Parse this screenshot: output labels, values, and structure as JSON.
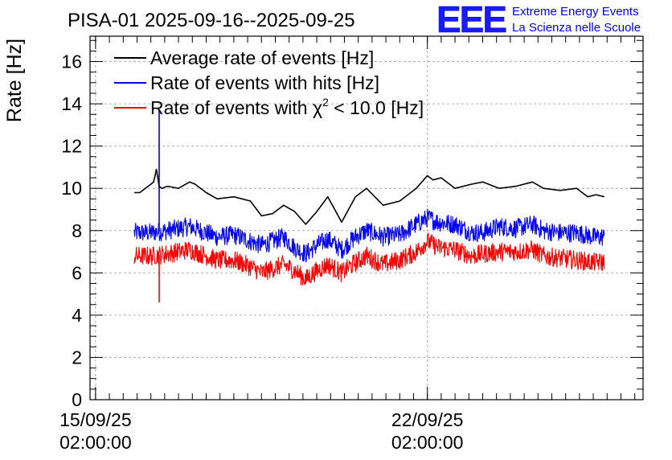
{
  "chart_data": {
    "type": "line",
    "title": "PISA-01 2025-09-16--2025-09-25",
    "ylabel": "Rate [Hz]",
    "xlabel": "",
    "ylim": [
      0,
      17.2
    ],
    "yticks": [
      0,
      2,
      4,
      6,
      8,
      10,
      12,
      14,
      16
    ],
    "yticklabels": [
      "0",
      "2",
      "4",
      "6",
      "8",
      "10",
      "12",
      "14",
      "16"
    ],
    "xlim_days": [
      -0.1,
      9.9
    ],
    "xticks": [
      {
        "day": 0,
        "label_date": "15/09/25",
        "label_time": "02:00:00"
      },
      {
        "day": 6,
        "label_date": "22/09/25",
        "label_time": "02:00:00"
      }
    ],
    "grid": true,
    "legend_position": "top-left",
    "series": [
      {
        "name": "Average rate of events [Hz]",
        "color": "#000000",
        "style": "smooth",
        "x_days": [
          0.7,
          0.8,
          0.9,
          1.0,
          1.05,
          1.1,
          1.15,
          1.2,
          1.3,
          1.5,
          1.7,
          1.8,
          2.0,
          2.2,
          2.5,
          2.8,
          3.0,
          3.2,
          3.4,
          3.6,
          3.8,
          4.0,
          4.2,
          4.45,
          4.7,
          4.9,
          5.2,
          5.5,
          5.8,
          6.0,
          6.1,
          6.25,
          6.5,
          6.8,
          7.0,
          7.3,
          7.6,
          7.9,
          8.1,
          8.4,
          8.7,
          8.9,
          9.05,
          9.2
        ],
        "values": [
          9.8,
          9.8,
          10.0,
          10.2,
          10.3,
          10.9,
          10.1,
          10.0,
          10.1,
          10.0,
          10.3,
          10.2,
          9.8,
          9.5,
          9.6,
          9.4,
          8.7,
          8.8,
          9.2,
          8.9,
          8.3,
          8.9,
          9.6,
          8.4,
          9.6,
          10.0,
          9.2,
          9.4,
          10.0,
          10.6,
          10.4,
          10.5,
          10.0,
          10.2,
          10.3,
          10.0,
          10.1,
          10.3,
          10.0,
          9.9,
          10.0,
          9.6,
          9.7,
          9.6
        ]
      },
      {
        "name": "Rate of events with hits [Hz]",
        "color": "#0000ff",
        "style": "noisy",
        "spike": {
          "day": 1.15,
          "value": 13.7
        },
        "x_days": [
          0.7,
          1.0,
          1.3,
          1.7,
          2.0,
          2.2,
          2.5,
          2.8,
          3.0,
          3.2,
          3.4,
          3.6,
          3.8,
          4.0,
          4.2,
          4.45,
          4.7,
          4.9,
          5.2,
          5.5,
          5.8,
          6.0,
          6.2,
          6.5,
          6.8,
          7.0,
          7.3,
          7.6,
          7.9,
          8.1,
          8.4,
          8.7,
          9.0,
          9.2
        ],
        "values": [
          7.9,
          7.9,
          8.0,
          8.2,
          7.9,
          7.7,
          7.8,
          7.5,
          7.3,
          7.5,
          7.7,
          7.2,
          6.9,
          7.3,
          7.6,
          7.1,
          7.7,
          8.0,
          7.7,
          7.8,
          8.3,
          8.6,
          8.4,
          8.3,
          7.9,
          7.9,
          8.2,
          8.1,
          8.3,
          8.0,
          7.9,
          7.9,
          7.7,
          7.7
        ],
        "noise": 0.45
      },
      {
        "name": "Rate of events with χ² < 10.0 [Hz]",
        "color": "#ff0000",
        "style": "noisy",
        "spike": {
          "day": 1.15,
          "value": 4.6
        },
        "x_days": [
          0.7,
          1.0,
          1.3,
          1.7,
          2.0,
          2.2,
          2.5,
          2.8,
          3.0,
          3.2,
          3.4,
          3.6,
          3.8,
          4.0,
          4.2,
          4.45,
          4.7,
          4.9,
          5.2,
          5.5,
          5.8,
          6.0,
          6.2,
          6.5,
          6.8,
          7.0,
          7.3,
          7.6,
          7.9,
          8.1,
          8.4,
          8.7,
          9.0,
          9.2
        ],
        "values": [
          6.8,
          6.8,
          6.9,
          7.1,
          6.8,
          6.6,
          6.6,
          6.3,
          6.0,
          6.2,
          6.4,
          6.1,
          5.7,
          6.1,
          6.4,
          6.0,
          6.5,
          6.8,
          6.4,
          6.6,
          7.0,
          7.5,
          7.2,
          7.1,
          6.8,
          6.9,
          7.0,
          7.0,
          7.1,
          6.8,
          6.7,
          6.6,
          6.5,
          6.5
        ],
        "noise": 0.45
      }
    ]
  },
  "legend": {
    "items": [
      "Average rate of events [Hz]",
      "Rate of events with hits [Hz]"
    ],
    "chi_prefix": "Rate of events with χ",
    "chi_sup": "2",
    "chi_suffix": " < 10.0 [Hz]"
  },
  "logo": {
    "text": "EEE",
    "line1": "Extreme Energy Events",
    "line2": "La Scienza nelle Scuole",
    "color": "#0000ff"
  }
}
